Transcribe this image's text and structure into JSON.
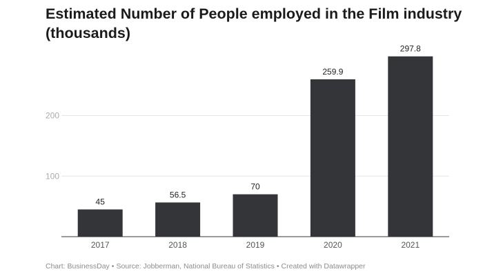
{
  "chart_data": {
    "type": "bar",
    "title": "Estimated Number of People employed in the Film industry (thousands)",
    "categories": [
      "2017",
      "2018",
      "2019",
      "2020",
      "2021"
    ],
    "values": [
      45,
      56.5,
      70,
      259.9,
      297.8
    ],
    "value_labels": [
      "45",
      "56.5",
      "70",
      "259.9",
      "297.8"
    ],
    "yticks": [
      100,
      200
    ],
    "ylim": [
      0,
      300
    ],
    "xlabel": "",
    "ylabel": "",
    "grid": true,
    "bar_color": "#333538",
    "gridline_color": "#e6e6e6",
    "baseline_color": "#333333"
  },
  "footer": {
    "chart_credit": "Chart: BusinessDay",
    "source": "Source: Jobberman, National Bureau of Statistics",
    "created_with": "Created with Datawrapper",
    "separator": "•"
  }
}
